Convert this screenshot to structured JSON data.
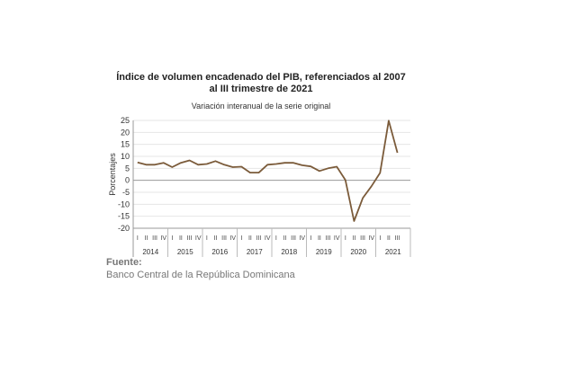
{
  "chart_data": {
    "type": "line",
    "title_line1": "Índice de volumen encadenado del PIB, referenciados al 2007",
    "title_line2": "al III trimestre de 2021",
    "subtitle": "Variación interanual de la serie original",
    "ylabel": "Porcentajes",
    "ylim": [
      -20,
      25
    ],
    "yticks": [
      25,
      20,
      15,
      10,
      5,
      0,
      -5,
      -10,
      -15,
      -20
    ],
    "grid": true,
    "color": "#7b5b3a",
    "years": [
      "2014",
      "2015",
      "2016",
      "2017",
      "2018",
      "2019",
      "2020",
      "2021"
    ],
    "quarters": [
      "I",
      "II",
      "III",
      "IV"
    ],
    "x": [
      "2014-I",
      "2014-II",
      "2014-III",
      "2014-IV",
      "2015-I",
      "2015-II",
      "2015-III",
      "2015-IV",
      "2016-I",
      "2016-II",
      "2016-III",
      "2016-IV",
      "2017-I",
      "2017-II",
      "2017-III",
      "2017-IV",
      "2018-I",
      "2018-II",
      "2018-III",
      "2018-IV",
      "2019-I",
      "2019-II",
      "2019-III",
      "2019-IV",
      "2020-I",
      "2020-II",
      "2020-III",
      "2020-IV",
      "2021-I",
      "2021-II",
      "2021-III"
    ],
    "values": [
      7.5,
      6.5,
      6.5,
      7.3,
      5.5,
      7.3,
      8.3,
      6.5,
      6.8,
      8.0,
      6.5,
      5.5,
      5.7,
      3.2,
      3.2,
      6.5,
      6.8,
      7.3,
      7.3,
      6.3,
      5.8,
      3.9,
      5.0,
      5.7,
      0.1,
      -17.0,
      -7.4,
      -2.5,
      3.1,
      24.9,
      11.5
    ]
  },
  "source": {
    "label": "Fuente:",
    "text": "Banco Central de la República Dominicana"
  }
}
